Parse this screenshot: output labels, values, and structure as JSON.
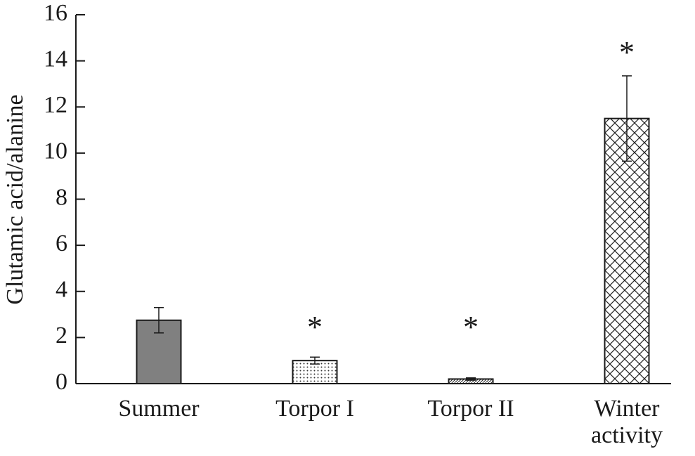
{
  "chart_data": {
    "type": "bar",
    "y_label": "Glutamic acid/alanine",
    "categories": [
      "Summer",
      "Torpor I",
      "Torpor II",
      "Winter activity"
    ],
    "values": [
      2.75,
      1.0,
      0.2,
      11.5
    ],
    "errors": [
      0.55,
      0.15,
      0.05,
      1.85
    ],
    "annotations": [
      null,
      "*",
      "*",
      "*"
    ],
    "fills": [
      "solid",
      "dots",
      "diagonal",
      "crosshatch"
    ],
    "color": "#808080",
    "ylim": [
      0,
      16
    ],
    "yticks": [
      0,
      2,
      4,
      6,
      8,
      10,
      12,
      14,
      16
    ]
  }
}
